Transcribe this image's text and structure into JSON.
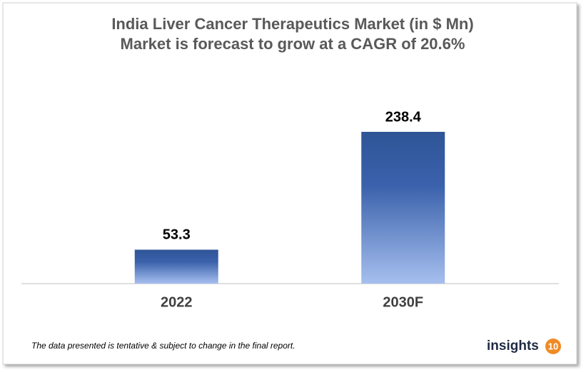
{
  "chart_data": {
    "type": "bar",
    "title": "India Liver Cancer Therapeutics Market (in $ Mn)",
    "subtitle": "Market is forecast to grow at a CAGR of 20.6%",
    "categories": [
      "2022",
      "2030F"
    ],
    "values": [
      53.3,
      238.4
    ],
    "color": "#2f5597"
  },
  "footnote": "The data presented is tentative & subject to change in the final report.",
  "logo": {
    "text": "insights",
    "badge": "10"
  }
}
